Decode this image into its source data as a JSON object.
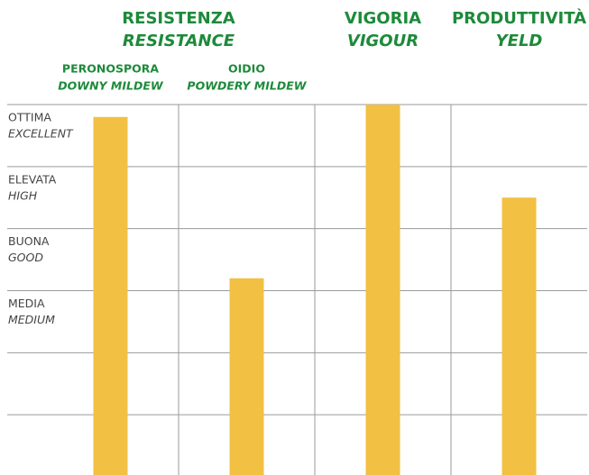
{
  "chart_data": {
    "type": "bar",
    "groups": [
      {
        "label": "RESISTENZA",
        "label_en": "RESISTANCE",
        "count": 2
      },
      {
        "label": "VIGORIA",
        "label_en": "VIGOUR",
        "count": 1
      },
      {
        "label": "PRODUTTIVITÀ",
        "label_en": "YELD",
        "count": 1
      }
    ],
    "categories": [
      "PERONOSPORA",
      "OIDIO",
      null,
      null
    ],
    "categories_en": [
      "DOWNY MILDEW",
      "POWDERY MILDEW",
      null,
      null
    ],
    "values": [
      5.8,
      3.2,
      6,
      4.5
    ],
    "color": "#f2c043",
    "ylim": [
      0,
      6
    ],
    "yticks": [
      1,
      2,
      3,
      4,
      5,
      6
    ],
    "levels": [
      {
        "value": 6,
        "label": "OTTIMA",
        "label_en": "EXCELLENT"
      },
      {
        "value": 5,
        "label": "ELEVATA",
        "label_en": "HIGH"
      },
      {
        "value": 4,
        "label": "BUONA",
        "label_en": "GOOD"
      },
      {
        "value": 3,
        "label": "MEDIA",
        "label_en": "MEDIUM"
      }
    ],
    "grid": true
  }
}
